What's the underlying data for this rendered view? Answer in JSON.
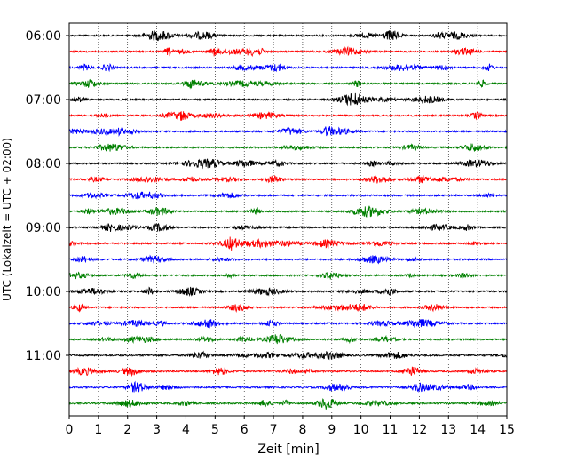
{
  "chart_data": {
    "type": "line",
    "title": "",
    "xlabel": "Zeit  [min]",
    "ylabel": "UTC (Lokalzeit = UTC + 02:00)",
    "xlim": [
      0,
      15
    ],
    "x_ticks": [
      "0",
      "1",
      "2",
      "3",
      "4",
      "5",
      "6",
      "7",
      "8",
      "9",
      "10",
      "11",
      "12",
      "13",
      "14",
      "15"
    ],
    "y_ticks": [
      "06:00",
      "07:00",
      "08:00",
      "09:00",
      "10:00",
      "11:00"
    ],
    "grid": "vertical dotted lines at each minute",
    "trace_colors": [
      "#000000",
      "#ff0000",
      "#0000ff",
      "#008000"
    ],
    "trace_interval_minutes": 15,
    "series": [
      {
        "start": "06:00",
        "color": "#000000"
      },
      {
        "start": "06:15",
        "color": "#ff0000"
      },
      {
        "start": "06:30",
        "color": "#0000ff"
      },
      {
        "start": "06:45",
        "color": "#008000"
      },
      {
        "start": "07:00",
        "color": "#000000"
      },
      {
        "start": "07:15",
        "color": "#ff0000"
      },
      {
        "start": "07:30",
        "color": "#0000ff"
      },
      {
        "start": "07:45",
        "color": "#008000"
      },
      {
        "start": "08:00",
        "color": "#000000"
      },
      {
        "start": "08:15",
        "color": "#ff0000"
      },
      {
        "start": "08:30",
        "color": "#0000ff"
      },
      {
        "start": "08:45",
        "color": "#008000"
      },
      {
        "start": "09:00",
        "color": "#000000"
      },
      {
        "start": "09:15",
        "color": "#ff0000"
      },
      {
        "start": "09:30",
        "color": "#0000ff"
      },
      {
        "start": "09:45",
        "color": "#008000"
      },
      {
        "start": "10:00",
        "color": "#000000"
      },
      {
        "start": "10:15",
        "color": "#ff0000"
      },
      {
        "start": "10:30",
        "color": "#0000ff"
      },
      {
        "start": "10:45",
        "color": "#008000"
      },
      {
        "start": "11:00",
        "color": "#000000"
      },
      {
        "start": "11:15",
        "color": "#ff0000"
      },
      {
        "start": "11:30",
        "color": "#0000ff"
      },
      {
        "start": "11:45",
        "color": "#008000"
      }
    ]
  }
}
